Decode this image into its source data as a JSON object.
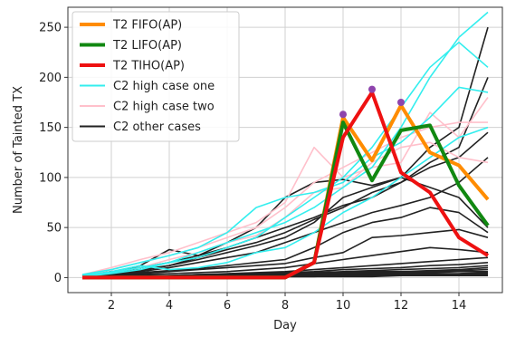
{
  "chart_data": {
    "type": "line",
    "title": "",
    "xlabel": "Day",
    "ylabel": "Number of Tainted TX",
    "xlim": [
      0.5,
      15.5
    ],
    "ylim": [
      -15,
      270
    ],
    "xticks": [
      2,
      4,
      6,
      8,
      10,
      12,
      14
    ],
    "yticks": [
      0,
      50,
      100,
      150,
      200,
      250
    ],
    "grid": true,
    "legend_position": "top-left",
    "legend": [
      {
        "label": "T2 FIFO(AP)",
        "color": "#ff8c00",
        "width": 4
      },
      {
        "label": "T2 LIFO(AP)",
        "color": "#118811",
        "width": 4
      },
      {
        "label": "T2 TIHO(AP)",
        "color": "#ee1111",
        "width": 4
      },
      {
        "label": "C2 high case one",
        "color": "#33eeee",
        "width": 2
      },
      {
        "label": "C2 high case two",
        "color": "#ffc0cb",
        "width": 2
      },
      {
        "label": "C2 other cases",
        "color": "#222222",
        "width": 2
      }
    ],
    "x": [
      1,
      2,
      3,
      4,
      5,
      6,
      7,
      8,
      9,
      10,
      11,
      12,
      13,
      14,
      15
    ],
    "background_series": [
      {
        "group": "C2 other cases",
        "values": [
          2,
          5,
          8,
          12,
          18,
          25,
          32,
          40,
          55,
          80,
          90,
          100,
          130,
          150,
          250
        ]
      },
      {
        "group": "C2 other cases",
        "values": [
          2,
          6,
          10,
          15,
          22,
          30,
          40,
          50,
          60,
          72,
          80,
          95,
          115,
          130,
          200
        ]
      },
      {
        "group": "C2 other cases",
        "values": [
          1,
          4,
          7,
          12,
          20,
          28,
          35,
          45,
          58,
          70,
          85,
          95,
          110,
          120,
          145
        ]
      },
      {
        "group": "C2 other cases",
        "values": [
          1,
          3,
          6,
          10,
          15,
          20,
          25,
          35,
          45,
          55,
          65,
          72,
          80,
          95,
          120
        ]
      },
      {
        "group": "C2 other cases",
        "values": [
          2,
          5,
          12,
          28,
          22,
          35,
          50,
          80,
          95,
          98,
          92,
          100,
          90,
          80,
          50
        ]
      },
      {
        "group": "C2 other cases",
        "values": [
          1,
          3,
          5,
          7,
          9,
          12,
          15,
          18,
          30,
          45,
          55,
          60,
          70,
          65,
          45
        ]
      },
      {
        "group": "C2 other cases",
        "values": [
          1,
          2,
          4,
          6,
          8,
          10,
          12,
          14,
          20,
          25,
          40,
          42,
          45,
          48,
          40
        ]
      },
      {
        "group": "C2 other cases",
        "values": [
          1,
          2,
          3,
          4,
          5,
          6,
          8,
          10,
          14,
          18,
          22,
          26,
          30,
          28,
          25
        ]
      },
      {
        "group": "C2 other cases",
        "values": [
          1,
          1,
          2,
          2,
          3,
          4,
          5,
          6,
          8,
          10,
          12,
          14,
          16,
          18,
          20
        ]
      },
      {
        "group": "C2 other cases",
        "values": [
          1,
          1,
          2,
          2,
          3,
          3,
          4,
          5,
          6,
          8,
          9,
          10,
          12,
          13,
          15
        ]
      },
      {
        "group": "C2 other cases",
        "values": [
          0,
          1,
          1,
          2,
          2,
          3,
          3,
          4,
          5,
          6,
          7,
          8,
          9,
          10,
          12
        ]
      },
      {
        "group": "C2 other cases",
        "values": [
          0,
          1,
          1,
          1,
          2,
          2,
          3,
          3,
          4,
          5,
          6,
          6,
          7,
          8,
          10
        ]
      },
      {
        "group": "C2 other cases",
        "values": [
          0,
          0,
          1,
          1,
          1,
          2,
          2,
          3,
          3,
          4,
          5,
          5,
          6,
          7,
          8
        ]
      },
      {
        "group": "C2 other cases",
        "values": [
          0,
          0,
          1,
          1,
          1,
          1,
          2,
          2,
          3,
          3,
          4,
          4,
          5,
          6,
          6
        ]
      },
      {
        "group": "C2 other cases",
        "values": [
          0,
          0,
          0,
          1,
          1,
          1,
          1,
          2,
          2,
          3,
          3,
          3,
          4,
          4,
          5
        ]
      },
      {
        "group": "C2 other cases",
        "values": [
          0,
          0,
          0,
          0,
          1,
          1,
          1,
          1,
          2,
          2,
          2,
          3,
          3,
          3,
          4
        ]
      },
      {
        "group": "C2 other cases",
        "values": [
          0,
          0,
          0,
          0,
          0,
          1,
          1,
          1,
          1,
          2,
          2,
          2,
          2,
          3,
          3
        ]
      },
      {
        "group": "C2 other cases",
        "values": [
          0,
          0,
          0,
          0,
          0,
          0,
          1,
          1,
          1,
          1,
          1,
          2,
          2,
          2,
          2
        ]
      },
      {
        "group": "C2 high case one",
        "values": [
          2,
          5,
          10,
          15,
          25,
          35,
          45,
          55,
          70,
          90,
          110,
          150,
          200,
          240,
          265
        ]
      },
      {
        "group": "C2 high case one",
        "values": [
          1,
          4,
          8,
          15,
          20,
          30,
          40,
          60,
          80,
          100,
          130,
          170,
          210,
          235,
          210
        ]
      },
      {
        "group": "C2 high case one",
        "values": [
          3,
          8,
          15,
          22,
          30,
          45,
          70,
          80,
          85,
          95,
          120,
          135,
          160,
          190,
          185
        ]
      },
      {
        "group": "C2 high case one",
        "values": [
          2,
          6,
          12,
          8,
          10,
          15,
          25,
          30,
          45,
          65,
          80,
          100,
          120,
          140,
          150
        ]
      },
      {
        "group": "C2 high case two",
        "values": [
          3,
          10,
          18,
          25,
          35,
          45,
          55,
          75,
          130,
          100,
          110,
          115,
          165,
          140,
          180
        ]
      },
      {
        "group": "C2 high case two",
        "values": [
          2,
          8,
          15,
          22,
          30,
          40,
          50,
          70,
          95,
          110,
          125,
          140,
          150,
          155,
          155
        ]
      },
      {
        "group": "C2 high case two",
        "values": [
          1,
          5,
          10,
          18,
          25,
          35,
          42,
          60,
          85,
          90,
          115,
          130,
          135,
          120,
          115
        ]
      }
    ],
    "series": [
      {
        "name": "T2 FIFO(AP)",
        "color": "#ff8c00",
        "width": 4,
        "values": [
          0,
          0,
          0,
          0,
          0,
          0,
          0,
          0,
          15,
          160,
          117,
          172,
          125,
          112,
          78
        ]
      },
      {
        "name": "T2 LIFO(AP)",
        "color": "#118811",
        "width": 4,
        "values": [
          0,
          0,
          0,
          0,
          0,
          0,
          0,
          0,
          15,
          155,
          97,
          147,
          152,
          92,
          52
        ]
      },
      {
        "name": "T2 TIHO(AP)",
        "color": "#ee1111",
        "width": 4,
        "values": [
          0,
          0,
          0,
          0,
          0,
          0,
          0,
          0,
          15,
          140,
          185,
          105,
          85,
          40,
          22
        ]
      }
    ],
    "markers": {
      "color": "#8e44ad",
      "points": [
        {
          "x": 10,
          "y": 163
        },
        {
          "x": 11,
          "y": 188
        },
        {
          "x": 12,
          "y": 175
        }
      ]
    }
  }
}
